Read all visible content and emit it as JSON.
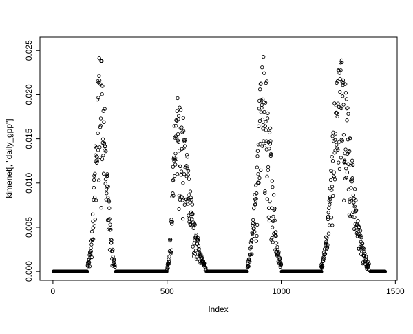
{
  "chart_data": {
    "type": "scatter",
    "title": "",
    "xlabel": "Index",
    "ylabel": "kimenet[, \"daily_gpp\"]",
    "xlim": [
      -57,
      1508
    ],
    "ylim": [
      -0.001,
      0.0265
    ],
    "x_ticks": [
      0,
      500,
      1000,
      1500
    ],
    "x_tick_labels": [
      "0",
      "500",
      "1000",
      "1500"
    ],
    "y_ticks": [
      0,
      0.005,
      0.01,
      0.015,
      0.02,
      0.025
    ],
    "y_tick_labels": [
      "0.000",
      "0.005",
      "0.010",
      "0.015",
      "0.020",
      "0.025"
    ],
    "marker": "open-circle",
    "point_color": "#000000",
    "background": "#ffffff",
    "grid": false,
    "legend": "none",
    "baseline_value": 0,
    "baseline_segments": [
      [
        2,
        150
      ],
      [
        276,
        498
      ],
      [
        674,
        850
      ],
      [
        1002,
        1176
      ],
      [
        1392,
        1455
      ]
    ],
    "seasons": [
      {
        "start": 152,
        "peak": 209,
        "end": 272,
        "peak_y": 0.0255
      },
      {
        "start": 500,
        "peak": 543,
        "end": 670,
        "peak_y": 0.0205
      },
      {
        "start": 852,
        "peak": 924,
        "end": 1000,
        "peak_y": 0.0256
      },
      {
        "start": 1175,
        "peak": 1255,
        "end": 1385,
        "peak_y": 0.0246
      }
    ]
  }
}
